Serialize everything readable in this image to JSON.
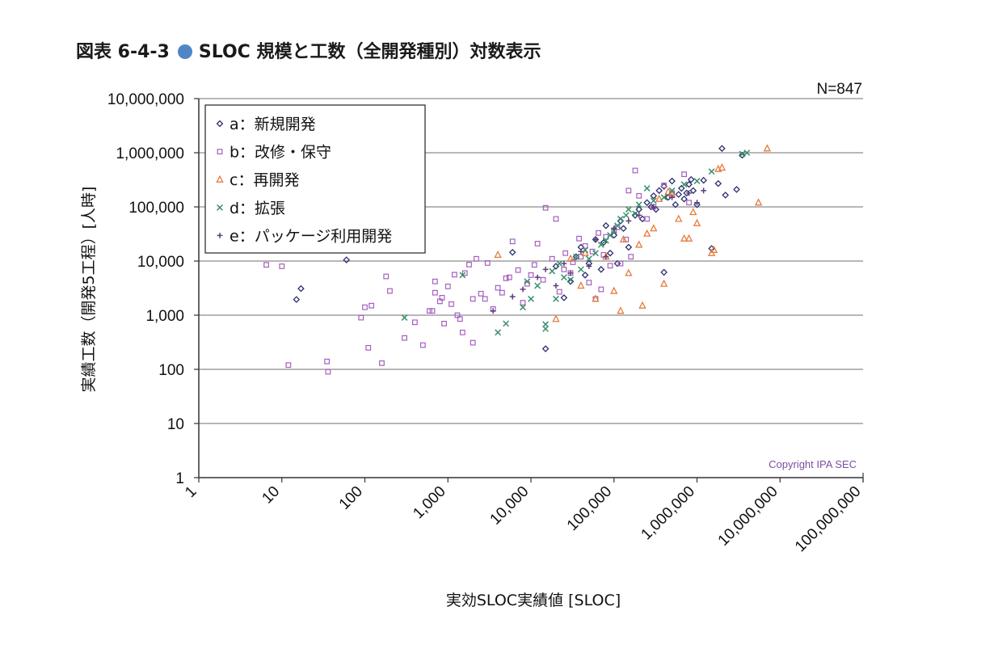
{
  "title": {
    "prefix": "図表 6-4-3",
    "text": "SLOC 規模と工数（全開発種別）対数表示",
    "bullet_color": "#4f86c6"
  },
  "chart_data": {
    "type": "scatter",
    "xscale": "log",
    "yscale": "log",
    "xlim": [
      1,
      100000000
    ],
    "ylim": [
      1,
      10000000
    ],
    "xlabel": "実効SLOC実績値 [SLOC]",
    "ylabel": "実績工数（開発5工程）[人時]",
    "xticks": [
      "1",
      "10",
      "100",
      "1,000",
      "10,000",
      "100,000",
      "1,000,000",
      "10,000,000",
      "100,000,000"
    ],
    "yticks": [
      "1",
      "10",
      "100",
      "1,000",
      "10,000",
      "100,000",
      "1,000,000",
      "10,000,000"
    ],
    "grid": "horizontal",
    "legend_position": "top-left",
    "annotation_n": "N=847",
    "copyright": "Copyright IPA SEC",
    "copyright_color": "#7b4fa0",
    "series": [
      {
        "name": "a：新規開発",
        "marker": "diamond",
        "color": "#2a2f6e",
        "points": [
          [
            15,
            1950
          ],
          [
            17,
            3100
          ],
          [
            60,
            10500
          ],
          [
            6000,
            14500
          ],
          [
            15000,
            240
          ],
          [
            25000,
            2100
          ],
          [
            30000,
            4200
          ],
          [
            50000,
            9000
          ],
          [
            70000,
            7000
          ],
          [
            80000,
            45000
          ],
          [
            100000,
            30000
          ],
          [
            120000,
            55000
          ],
          [
            150000,
            18000
          ],
          [
            200000,
            90000
          ],
          [
            250000,
            120000
          ],
          [
            300000,
            160000
          ],
          [
            350000,
            200000
          ],
          [
            400000,
            6200
          ],
          [
            400000,
            240000
          ],
          [
            500000,
            300000
          ],
          [
            600000,
            170000
          ],
          [
            700000,
            140000
          ],
          [
            800000,
            260000
          ],
          [
            900000,
            200000
          ],
          [
            1000000,
            110000
          ],
          [
            1200000,
            310000
          ],
          [
            1500000,
            17000
          ],
          [
            1800000,
            270000
          ],
          [
            2000000,
            1200000
          ],
          [
            2200000,
            165000
          ],
          [
            3000000,
            210000
          ],
          [
            3500000,
            900000
          ],
          [
            20000,
            8000
          ],
          [
            40000,
            18000
          ],
          [
            60000,
            25000
          ],
          [
            90000,
            14000
          ],
          [
            110000,
            9000
          ],
          [
            35000,
            12000
          ],
          [
            45000,
            5500
          ],
          [
            75000,
            22000
          ],
          [
            130000,
            40000
          ],
          [
            180000,
            70000
          ],
          [
            220000,
            60000
          ],
          [
            280000,
            100000
          ],
          [
            320000,
            90000
          ],
          [
            450000,
            150000
          ],
          [
            550000,
            110000
          ],
          [
            650000,
            220000
          ],
          [
            750000,
            180000
          ],
          [
            850000,
            320000
          ]
        ]
      },
      {
        "name": "b：改修・保守",
        "marker": "square",
        "color": "#a55fbf",
        "points": [
          [
            6.5,
            8500
          ],
          [
            10,
            8000
          ],
          [
            12,
            120
          ],
          [
            35,
            140
          ],
          [
            36,
            90
          ],
          [
            90,
            900
          ],
          [
            100,
            1400
          ],
          [
            120,
            1500
          ],
          [
            110,
            250
          ],
          [
            160,
            130
          ],
          [
            180,
            5200
          ],
          [
            200,
            2800
          ],
          [
            300,
            380
          ],
          [
            400,
            740
          ],
          [
            500,
            280
          ],
          [
            600,
            1200
          ],
          [
            700,
            2600
          ],
          [
            800,
            1800
          ],
          [
            900,
            700
          ],
          [
            1000,
            3400
          ],
          [
            1200,
            5600
          ],
          [
            1300,
            1000
          ],
          [
            1500,
            480
          ],
          [
            1600,
            6000
          ],
          [
            2000,
            310
          ],
          [
            2500,
            2500
          ],
          [
            3000,
            9200
          ],
          [
            4000,
            3200
          ],
          [
            5000,
            4800
          ],
          [
            6000,
            23000
          ],
          [
            7000,
            6800
          ],
          [
            8000,
            1700
          ],
          [
            10000,
            5500
          ],
          [
            12000,
            21000
          ],
          [
            15000,
            96000
          ],
          [
            20000,
            60000
          ],
          [
            25000,
            7000
          ],
          [
            30000,
            6000
          ],
          [
            40000,
            12000
          ],
          [
            50000,
            4000
          ],
          [
            60000,
            2000
          ],
          [
            70000,
            3000
          ],
          [
            80000,
            28000
          ],
          [
            100000,
            37000
          ],
          [
            120000,
            9000
          ],
          [
            150000,
            200000
          ],
          [
            180000,
            470000
          ],
          [
            200000,
            160000
          ],
          [
            250000,
            60000
          ],
          [
            300000,
            100000
          ],
          [
            400000,
            250000
          ],
          [
            500000,
            180000
          ],
          [
            700000,
            400000
          ],
          [
            800000,
            120000
          ],
          [
            2000,
            2000
          ],
          [
            3500,
            1300
          ],
          [
            4500,
            2600
          ],
          [
            5500,
            5000
          ],
          [
            9000,
            3800
          ],
          [
            11000,
            8500
          ],
          [
            14000,
            4500
          ],
          [
            18000,
            11000
          ],
          [
            22000,
            2700
          ],
          [
            26000,
            14000
          ],
          [
            32000,
            9500
          ],
          [
            38000,
            26000
          ],
          [
            45000,
            19000
          ],
          [
            55000,
            15000
          ],
          [
            65000,
            33000
          ],
          [
            75000,
            13000
          ],
          [
            90000,
            8200
          ],
          [
            110000,
            42000
          ],
          [
            140000,
            25000
          ],
          [
            160000,
            12000
          ],
          [
            700,
            4200
          ],
          [
            1800,
            8600
          ],
          [
            2200,
            11000
          ],
          [
            2800,
            2000
          ],
          [
            1100,
            1600
          ],
          [
            650,
            1200
          ],
          [
            850,
            2100
          ],
          [
            1400,
            850
          ]
        ]
      },
      {
        "name": "c：再開発",
        "marker": "triangle",
        "color": "#e57c3d",
        "points": [
          [
            4000,
            13000
          ],
          [
            20000,
            850
          ],
          [
            40000,
            3500
          ],
          [
            60000,
            2000
          ],
          [
            100000,
            2800
          ],
          [
            120000,
            1200
          ],
          [
            150000,
            6000
          ],
          [
            200000,
            20000
          ],
          [
            220000,
            1500
          ],
          [
            300000,
            40000
          ],
          [
            350000,
            140000
          ],
          [
            400000,
            3800
          ],
          [
            450000,
            190000
          ],
          [
            500000,
            170000
          ],
          [
            600000,
            60000
          ],
          [
            700000,
            26000
          ],
          [
            800000,
            26000
          ],
          [
            900000,
            80000
          ],
          [
            1000000,
            50000
          ],
          [
            1500000,
            14000
          ],
          [
            1600000,
            16000
          ],
          [
            1800000,
            500000
          ],
          [
            2000000,
            530000
          ],
          [
            5500000,
            120000
          ],
          [
            7000000,
            1200000
          ],
          [
            30000,
            11000
          ],
          [
            45000,
            14000
          ],
          [
            80000,
            12000
          ],
          [
            130000,
            25000
          ],
          [
            250000,
            32000
          ]
        ]
      },
      {
        "name": "d：拡張",
        "marker": "x",
        "color": "#3a8f6a",
        "points": [
          [
            300,
            900
          ],
          [
            1500,
            5500
          ],
          [
            4000,
            480
          ],
          [
            5000,
            700
          ],
          [
            8000,
            1400
          ],
          [
            10000,
            2000
          ],
          [
            12000,
            3500
          ],
          [
            15000,
            560
          ],
          [
            15000,
            680
          ],
          [
            20000,
            2000
          ],
          [
            25000,
            5000
          ],
          [
            30000,
            4500
          ],
          [
            40000,
            7000
          ],
          [
            50000,
            11000
          ],
          [
            60000,
            14000
          ],
          [
            80000,
            24000
          ],
          [
            100000,
            36000
          ],
          [
            120000,
            60000
          ],
          [
            150000,
            90000
          ],
          [
            200000,
            110000
          ],
          [
            250000,
            220000
          ],
          [
            300000,
            130000
          ],
          [
            400000,
            150000
          ],
          [
            500000,
            200000
          ],
          [
            700000,
            260000
          ],
          [
            1000000,
            300000
          ],
          [
            1500000,
            450000
          ],
          [
            3500000,
            950000
          ],
          [
            4000000,
            1000000
          ],
          [
            9000,
            4200
          ],
          [
            18000,
            6500
          ],
          [
            22000,
            9000
          ],
          [
            35000,
            12000
          ],
          [
            45000,
            16000
          ],
          [
            70000,
            20000
          ],
          [
            90000,
            30000
          ],
          [
            110000,
            45000
          ],
          [
            140000,
            70000
          ],
          [
            180000,
            75000
          ]
        ]
      },
      {
        "name": "e：パッケージ利用開発",
        "marker": "plus",
        "color": "#5a3d78",
        "points": [
          [
            3500,
            1200
          ],
          [
            6000,
            2200
          ],
          [
            8000,
            3000
          ],
          [
            12000,
            5000
          ],
          [
            15000,
            7000
          ],
          [
            20000,
            3500
          ],
          [
            25000,
            9000
          ],
          [
            30000,
            6000
          ],
          [
            40000,
            15000
          ],
          [
            50000,
            8000
          ],
          [
            60000,
            25000
          ],
          [
            80000,
            12000
          ],
          [
            100000,
            40000
          ],
          [
            150000,
            55000
          ],
          [
            200000,
            70000
          ],
          [
            300000,
            100000
          ],
          [
            500000,
            150000
          ],
          [
            800000,
            180000
          ],
          [
            1000000,
            120000
          ],
          [
            1200000,
            200000
          ]
        ]
      }
    ]
  }
}
